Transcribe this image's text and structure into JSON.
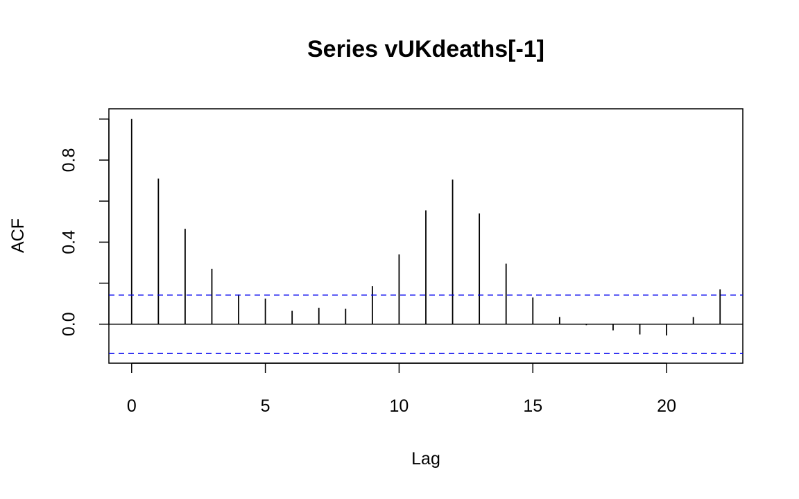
{
  "chart_data": {
    "type": "bar",
    "title": "Series  vUKdeaths[-1]",
    "xlabel": "Lag",
    "ylabel": "ACF",
    "x": [
      0,
      1,
      2,
      3,
      4,
      5,
      6,
      7,
      8,
      9,
      10,
      11,
      12,
      13,
      14,
      15,
      16,
      17,
      18,
      19,
      20,
      21,
      22
    ],
    "values": [
      1.0,
      0.71,
      0.465,
      0.27,
      0.145,
      0.125,
      0.065,
      0.08,
      0.075,
      0.185,
      0.34,
      0.555,
      0.705,
      0.54,
      0.295,
      0.13,
      0.035,
      -0.005,
      -0.03,
      -0.05,
      -0.055,
      0.035,
      0.17
    ],
    "confidence_bound": 0.142,
    "xlim": [
      -0.85,
      22.85
    ],
    "ylim": [
      -0.19,
      1.05
    ],
    "x_ticks": [
      0,
      5,
      10,
      15,
      20
    ],
    "y_ticks": [
      0.0,
      0.2,
      0.4,
      0.6,
      0.8,
      1.0
    ],
    "y_tick_labels": [
      "0.0",
      "",
      "0.4",
      "",
      "0.8",
      ""
    ],
    "bar_color": "#000000",
    "bound_color": "#0000ee",
    "grid": false
  }
}
